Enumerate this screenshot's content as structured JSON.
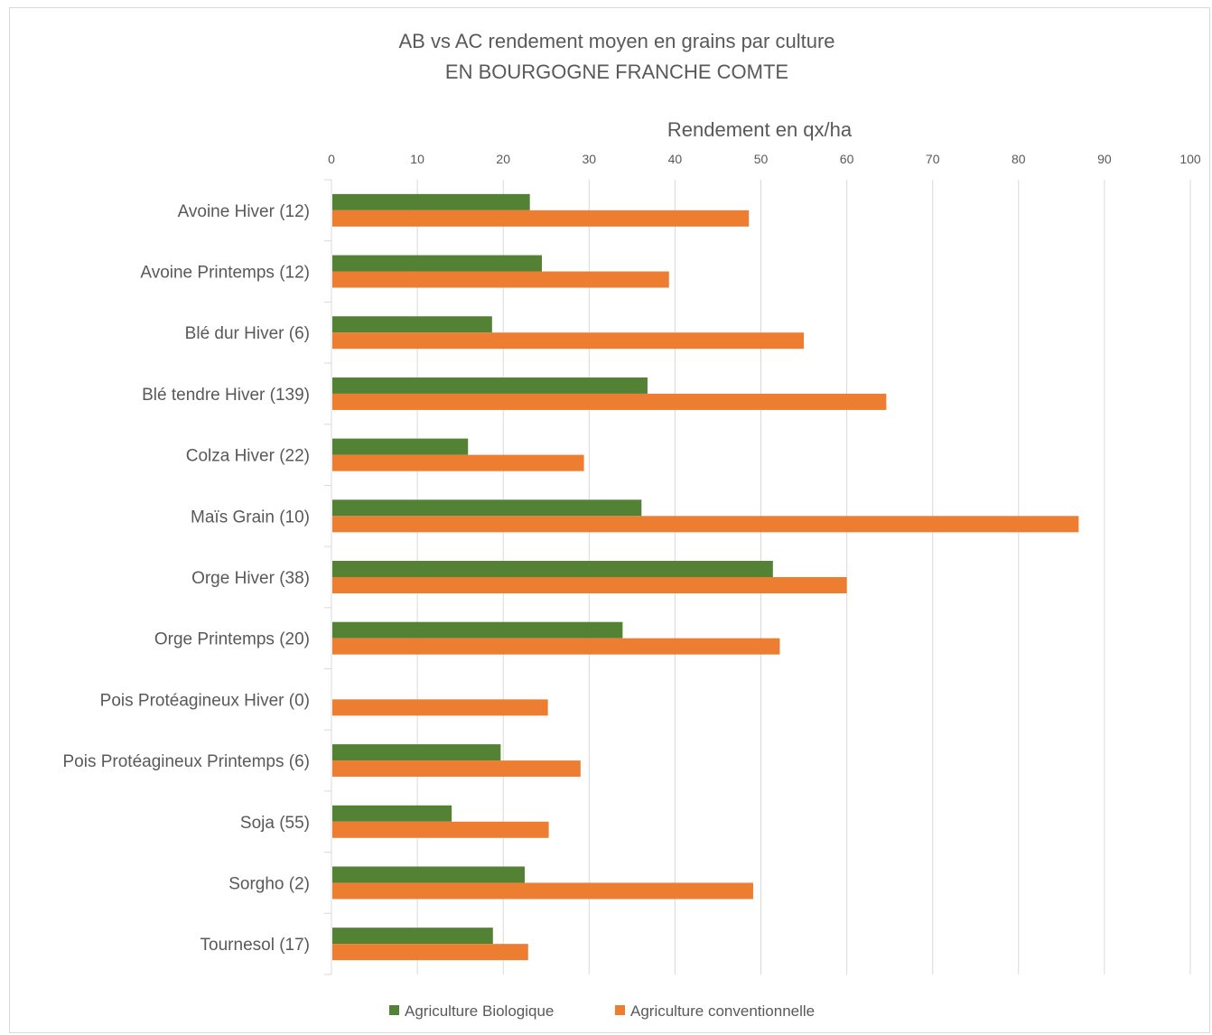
{
  "chart_data": {
    "type": "bar",
    "orientation": "horizontal",
    "title": [
      "AB vs AC rendement moyen en grains par culture",
      "EN BOURGOGNE FRANCHE COMTE"
    ],
    "xlabel": "Rendement en qx/ha",
    "ylabel": "",
    "xlim": [
      0,
      100
    ],
    "xticks": [
      0,
      10,
      20,
      30,
      40,
      50,
      60,
      70,
      80,
      90,
      100
    ],
    "grid": true,
    "x_axis_position": "top",
    "legend_position": "bottom",
    "categories": [
      "Avoine Hiver (12)",
      "Avoine Printemps (12)",
      "Blé dur Hiver (6)",
      "Blé tendre Hiver (139)",
      "Colza Hiver (22)",
      "Maïs Grain (10)",
      "Orge Hiver (38)",
      "Orge Printemps (20)",
      "Pois Protéagineux Hiver (0)",
      "Pois Protéagineux Printemps (6)",
      "Soja (55)",
      "Sorgho (2)",
      "Tournesol (17)"
    ],
    "series": [
      {
        "name": "Agriculture Biologique",
        "color": "#548235",
        "values": [
          23.1,
          24.5,
          18.7,
          36.8,
          15.9,
          36.1,
          51.4,
          33.9,
          0,
          19.7,
          14.0,
          22.5,
          18.8
        ]
      },
      {
        "name": "Agriculture conventionnelle",
        "color": "#ED7D31",
        "values": [
          48.6,
          39.3,
          55.0,
          64.6,
          29.4,
          87.0,
          60.0,
          52.2,
          25.2,
          29.0,
          25.3,
          49.1,
          22.9
        ]
      }
    ]
  }
}
